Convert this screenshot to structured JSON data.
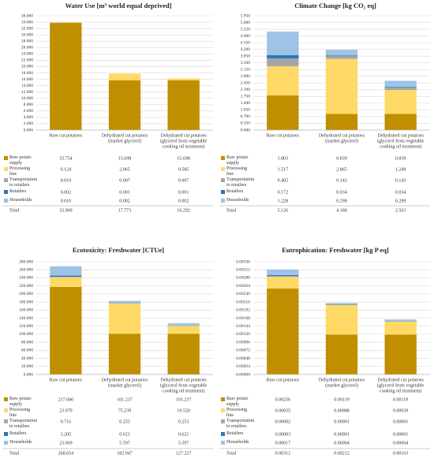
{
  "chart_data": [
    {
      "type": "bar",
      "stacked": true,
      "title": "Water Use [m³ world equal deprived]",
      "categories": [
        [
          "Raw cut potatoes"
        ],
        [
          "Dehydrated cut potatoes",
          "(market glycerol)"
        ],
        [
          "Dehydrated cut potatoes",
          "(glycerol from vegetable",
          "cooking oil treatment)"
        ]
      ],
      "series": [
        {
          "name": "Raw potato supply",
          "color": "#bf8f00",
          "values": [
            33.754,
            15.698,
            15.698
          ],
          "value_labels": [
            "33.754",
            "15.698",
            "15.698"
          ]
        },
        {
          "name": "Processing line",
          "color": "#ffd966",
          "values": [
            0.124,
            2.065,
            0.585
          ],
          "value_labels": [
            "0.124",
            "2.065",
            "0.585"
          ]
        },
        {
          "name": "Transportation to retailers",
          "color": "#a6a6a6",
          "values": [
            0.019,
            0.007,
            0.007
          ],
          "value_labels": [
            "0.019",
            "0.007",
            "0.007"
          ]
        },
        {
          "name": "Retailers",
          "color": "#2e75b6",
          "values": [
            0.002,
            0.001,
            0.001
          ],
          "value_labels": [
            "0.002",
            "0.001",
            "0.001"
          ]
        },
        {
          "name": "Households",
          "color": "#9dc3e6",
          "values": [
            0.01,
            0.002,
            0.002
          ],
          "value_labels": [
            "0.010",
            "0.002",
            "0.002"
          ]
        }
      ],
      "totals_name": "Total",
      "totals": [
        33.909,
        17.773,
        16.292
      ],
      "total_labels": [
        "33.909",
        "17.773",
        "16.292"
      ],
      "ylim": [
        0,
        36
      ],
      "yticks": [
        {
          "value": 0,
          "label": "0.000"
        },
        {
          "value": 2,
          "label": "2.000"
        },
        {
          "value": 4,
          "label": "4.000"
        },
        {
          "value": 6,
          "label": "6.000"
        },
        {
          "value": 8,
          "label": "8.000"
        },
        {
          "value": 10,
          "label": "10.000"
        },
        {
          "value": 12,
          "label": "12.000"
        },
        {
          "value": 14,
          "label": "14.000"
        },
        {
          "value": 16,
          "label": "16.000"
        },
        {
          "value": 18,
          "label": "18.000"
        },
        {
          "value": 20,
          "label": "20.000"
        },
        {
          "value": 22,
          "label": "22.000"
        },
        {
          "value": 24,
          "label": "24.000"
        },
        {
          "value": 26,
          "label": "26.000"
        },
        {
          "value": 28,
          "label": "28.000"
        },
        {
          "value": 30,
          "label": "30.000"
        },
        {
          "value": 32,
          "label": "32.000"
        },
        {
          "value": 34,
          "label": "34.000"
        },
        {
          "value": 36,
          "label": "36.000"
        }
      ],
      "grid": true
    },
    {
      "type": "bar",
      "stacked": true,
      "title": "Climate Change [kg CO₂ eq]",
      "categories": [
        [
          "Raw cut potatoes"
        ],
        [
          "Dehydrated cut potatoes",
          "(market glycerol)"
        ],
        [
          "Dehydrated cut potatoes",
          "(glycerol from vegetable",
          "cooking oil treatment)"
        ]
      ],
      "series": [
        {
          "name": "Raw potato supply",
          "color": "#bf8f00",
          "values": [
            1.803,
            0.839,
            0.839
          ],
          "value_labels": [
            "1.803",
            "0.839",
            "0.839"
          ]
        },
        {
          "name": "Processing line",
          "color": "#ffd966",
          "values": [
            1.517,
            2.865,
            1.249
          ],
          "value_labels": [
            "1.517",
            "2.865",
            "1.249"
          ]
        },
        {
          "name": "Transportation to retailers",
          "color": "#a6a6a6",
          "values": [
            0.405,
            0.143,
            0.143
          ],
          "value_labels": [
            "0.405",
            "0.143",
            "0.143"
          ]
        },
        {
          "name": "Retailers",
          "color": "#2e75b6",
          "values": [
            0.172,
            0.034,
            0.034
          ],
          "value_labels": [
            "0.172",
            "0.034",
            "0.034"
          ]
        },
        {
          "name": "Households",
          "color": "#9dc3e6",
          "values": [
            1.228,
            0.299,
            0.299
          ],
          "value_labels": [
            "1.228",
            "0.299",
            "0.299"
          ]
        }
      ],
      "totals_name": "Total",
      "totals": [
        5.126,
        4.18,
        2.563
      ],
      "total_labels": [
        "5.126",
        "4.180",
        "2.563"
      ],
      "ylim": [
        0,
        5.95
      ],
      "yticks": [
        {
          "value": 0,
          "label": "0.000"
        },
        {
          "value": 0.35,
          "label": "0.350"
        },
        {
          "value": 0.7,
          "label": "0.700"
        },
        {
          "value": 1.05,
          "label": "1.050"
        },
        {
          "value": 1.4,
          "label": "1.400"
        },
        {
          "value": 1.75,
          "label": "1.750"
        },
        {
          "value": 2.1,
          "label": "2.100"
        },
        {
          "value": 2.45,
          "label": "2.450"
        },
        {
          "value": 2.8,
          "label": "2.800"
        },
        {
          "value": 3.15,
          "label": "3.150"
        },
        {
          "value": 3.5,
          "label": "3.500"
        },
        {
          "value": 3.85,
          "label": "3.850"
        },
        {
          "value": 4.2,
          "label": "4.200"
        },
        {
          "value": 4.55,
          "label": "4.550"
        },
        {
          "value": 4.9,
          "label": "4.900"
        },
        {
          "value": 5.25,
          "label": "5.250"
        },
        {
          "value": 5.6,
          "label": "5.600"
        },
        {
          "value": 5.95,
          "label": "5.950"
        }
      ],
      "grid": true
    },
    {
      "type": "bar",
      "stacked": true,
      "title": "Ecotoxicity: Freshwater [CTUe]",
      "categories": [
        [
          "Raw cut potatoes"
        ],
        [
          "Dehydrated cut potatoes",
          "(market glycerol)"
        ],
        [
          "Dehydrated cut potatoes",
          "(glycerol from vegetable",
          "cooking oil treatment)"
        ]
      ],
      "series": [
        {
          "name": "Raw potato supply",
          "color": "#bf8f00",
          "values": [
            217.686,
            101.237,
            101.237
          ],
          "value_labels": [
            "217.686",
            "101.237",
            "101.237"
          ]
        },
        {
          "name": "Processing line",
          "color": "#ffd966",
          "values": [
            23.979,
            75.239,
            19.52
          ],
          "value_labels": [
            "23.979",
            "75.239",
            "19.520"
          ]
        },
        {
          "name": "Transportation to retailers",
          "color": "#a6a6a6",
          "values": [
            0.716,
            0.253,
            0.253
          ],
          "value_labels": [
            "0.716",
            "0.253",
            "0.253"
          ]
        },
        {
          "name": "Retailers",
          "color": "#2e75b6",
          "values": [
            3.205,
            0.621,
            0.621
          ],
          "value_labels": [
            "3.205",
            "0.621",
            "0.621"
          ]
        },
        {
          "name": "Households",
          "color": "#9dc3e6",
          "values": [
            23.069,
            5.597,
            5.597
          ],
          "value_labels": [
            "23.069",
            "5.597",
            "5.597"
          ]
        }
      ],
      "totals_name": "Total",
      "totals": [
        268.654,
        182.947,
        127.227
      ],
      "total_labels": [
        "268.654",
        "182.947",
        "127.227"
      ],
      "ylim": [
        0,
        280
      ],
      "yticks": [
        {
          "value": 0,
          "label": "0.000"
        },
        {
          "value": 20,
          "label": "20.000"
        },
        {
          "value": 40,
          "label": "40.000"
        },
        {
          "value": 60,
          "label": "60.000"
        },
        {
          "value": 80,
          "label": "80.000"
        },
        {
          "value": 100,
          "label": "100.000"
        },
        {
          "value": 120,
          "label": "120.000"
        },
        {
          "value": 140,
          "label": "140.000"
        },
        {
          "value": 160,
          "label": "160.000"
        },
        {
          "value": 180,
          "label": "180.000"
        },
        {
          "value": 200,
          "label": "200.000"
        },
        {
          "value": 220,
          "label": "220.000"
        },
        {
          "value": 240,
          "label": "240.000"
        },
        {
          "value": 260,
          "label": "260.000"
        },
        {
          "value": 280,
          "label": "280.000"
        }
      ],
      "grid": true
    },
    {
      "type": "bar",
      "stacked": true,
      "title": "Eutrophication: Freshwater [kg P eq]",
      "categories": [
        [
          "Raw cut potatoes"
        ],
        [
          "Dehydrated cut potatoes",
          "(market glycerol)"
        ],
        [
          "Dehydrated cut potatoes",
          "(glycerol from vegetable",
          "cooking oil treatment)"
        ]
      ],
      "series": [
        {
          "name": "Raw potato supply",
          "color": "#bf8f00",
          "values": [
            0.00256,
            0.00119,
            0.00119
          ],
          "value_labels": [
            "0.00256",
            "0.00119",
            "0.00119"
          ]
        },
        {
          "name": "Processing line",
          "color": "#ffd966",
          "values": [
            0.00035,
            0.00088,
            0.00039
          ],
          "value_labels": [
            "0.00035",
            "0.00088",
            "0.00039"
          ]
        },
        {
          "name": "Transportation to retailers",
          "color": "#a6a6a6",
          "values": [
            2e-05,
            1e-05,
            1e-05
          ],
          "value_labels": [
            "0.00002",
            "0.00001",
            "0.00001"
          ]
        },
        {
          "name": "Retailers",
          "color": "#2e75b6",
          "values": [
            3e-05,
            1e-05,
            1e-05
          ],
          "value_labels": [
            "0.00003",
            "0.00001",
            "0.00001"
          ]
        },
        {
          "name": "Households",
          "color": "#9dc3e6",
          "values": [
            0.00017,
            4e-05,
            4e-05
          ],
          "value_labels": [
            "0.00017",
            "0.00004",
            "0.00004"
          ]
        }
      ],
      "totals_name": "Total",
      "totals": [
        0.00312,
        0.00212,
        0.00163
      ],
      "total_labels": [
        "0.00312",
        "0.00212",
        "0.00163"
      ],
      "ylim": [
        0,
        0.00336
      ],
      "yticks": [
        {
          "value": 0,
          "label": "0.00000"
        },
        {
          "value": 0.00024,
          "label": "0.00024"
        },
        {
          "value": 0.00048,
          "label": "0.00048"
        },
        {
          "value": 0.00072,
          "label": "0.00072"
        },
        {
          "value": 0.00096,
          "label": "0.00096"
        },
        {
          "value": 0.0012,
          "label": "0.00120"
        },
        {
          "value": 0.00144,
          "label": "0.00144"
        },
        {
          "value": 0.00168,
          "label": "0.00168"
        },
        {
          "value": 0.00192,
          "label": "0.00192"
        },
        {
          "value": 0.00216,
          "label": "0.00216"
        },
        {
          "value": 0.0024,
          "label": "0.00240"
        },
        {
          "value": 0.00264,
          "label": "0.00264"
        },
        {
          "value": 0.00288,
          "label": "0.00288"
        },
        {
          "value": 0.00312,
          "label": "0.00312"
        },
        {
          "value": 0.00336,
          "label": "0.00336"
        }
      ],
      "grid": true
    }
  ]
}
